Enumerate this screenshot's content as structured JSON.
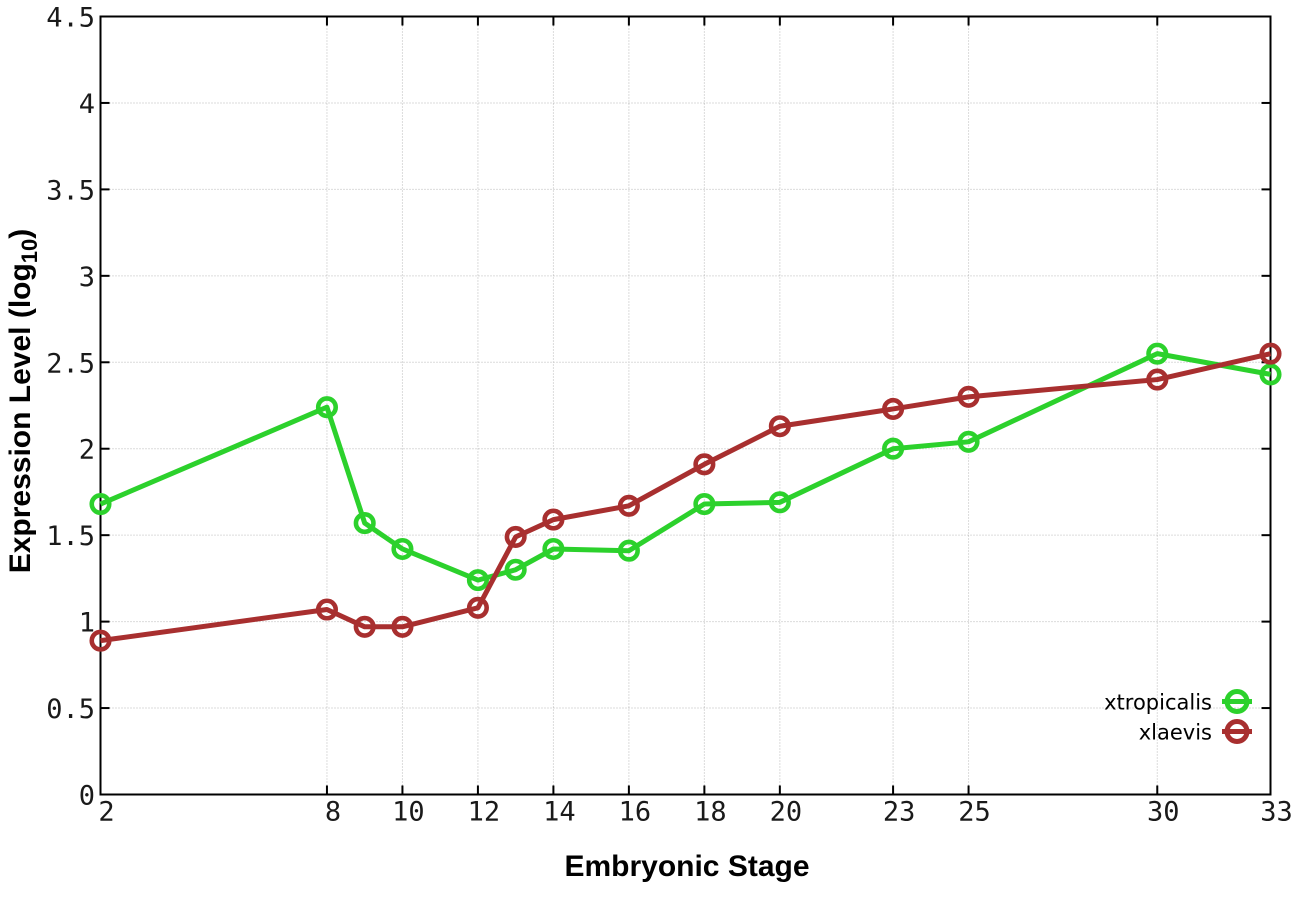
{
  "figure": {
    "background": "#ffffff",
    "x_axis_title": "Embryonic Stage",
    "y_axis_title_main": "Expression Level (log",
    "y_axis_title_sub": "10",
    "y_axis_title_end": ")"
  },
  "chart_data": {
    "type": "line",
    "x": [
      2,
      8,
      9,
      10,
      12,
      13,
      14,
      16,
      18,
      20,
      23,
      25,
      30,
      33
    ],
    "series": [
      {
        "name": "xtropicalis",
        "color": "#2cd12c",
        "values": [
          1.68,
          2.24,
          1.57,
          1.42,
          1.24,
          1.3,
          1.42,
          1.41,
          1.68,
          1.69,
          2.0,
          2.04,
          2.55,
          2.43
        ]
      },
      {
        "name": "xlaevis",
        "color": "#a82f2f",
        "values": [
          0.89,
          1.07,
          0.97,
          0.97,
          1.08,
          1.49,
          1.59,
          1.67,
          1.91,
          2.13,
          2.23,
          2.3,
          2.4,
          2.55
        ]
      }
    ],
    "xlabel": "Embryonic Stage",
    "ylabel": "Expression Level (log10)",
    "xticks": [
      2,
      8,
      10,
      12,
      14,
      16,
      18,
      20,
      23,
      25,
      30,
      33
    ],
    "yticks": [
      0,
      0.5,
      1,
      1.5,
      2,
      2.5,
      3,
      3.5,
      4,
      4.5
    ],
    "xlim": [
      2,
      33
    ],
    "ylim": [
      0,
      4.5
    ],
    "grid": true,
    "grid_color": "#b8b8b8",
    "axis_color": "#000000",
    "marker": "open-circle",
    "legend_position": "bottom-right"
  }
}
